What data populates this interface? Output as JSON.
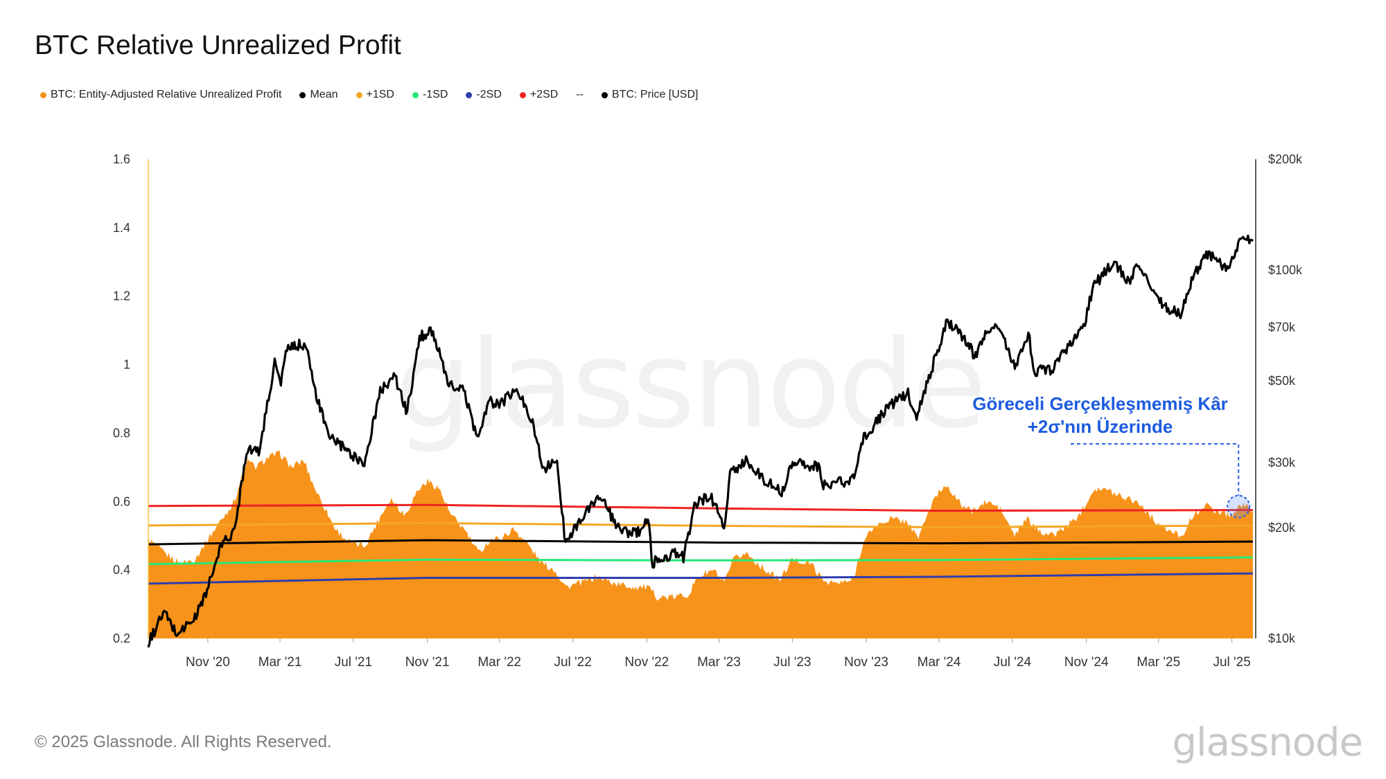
{
  "header": {
    "title": "BTC Relative Unrealized Profit"
  },
  "legend": [
    {
      "label": "BTC: Entity-Adjusted Relative Unrealized Profit",
      "color": "#f7931a"
    },
    {
      "label": "Mean",
      "color": "#000000"
    },
    {
      "label": "+1SD",
      "color": "#f5a623"
    },
    {
      "label": "-1SD",
      "color": "#24e876"
    },
    {
      "label": "-2SD",
      "color": "#2e3dad"
    },
    {
      "label": "+2SD",
      "color": "#ee2222"
    },
    {
      "label": "--",
      "color": ""
    },
    {
      "label": "BTC: Price [USD]",
      "color": "#000000"
    }
  ],
  "annotation": {
    "line1": "Göreceli Gerçekleşmemiş Kâr",
    "line2": "+2σ'nın Üzerinde"
  },
  "footer": {
    "copyright": "© 2025 Glassnode. All Rights Reserved.",
    "brand": "glassnode"
  },
  "watermark": "glassnode",
  "chart_data": {
    "type": "area",
    "x_tick_labels": [
      "Nov '20",
      "Mar '21",
      "Jul '21",
      "Nov '21",
      "Mar '22",
      "Jul '22",
      "Nov '22",
      "Mar '23",
      "Jul '23",
      "Nov '23",
      "Mar '24",
      "Jul '24",
      "Nov '24",
      "Mar '25",
      "Jul '25"
    ],
    "x_tick_dates": [
      "2020-11-01",
      "2021-03-01",
      "2021-07-01",
      "2021-11-01",
      "2022-03-01",
      "2022-07-01",
      "2022-11-01",
      "2023-03-01",
      "2023-07-01",
      "2023-11-01",
      "2024-03-01",
      "2024-07-01",
      "2024-11-01",
      "2025-03-01",
      "2025-07-01"
    ],
    "x_range": [
      "2020-07-25",
      "2025-08-05"
    ],
    "left_axis": {
      "range": [
        0.2,
        1.6
      ],
      "ticks": [
        0.2,
        0.4,
        0.6,
        0.8,
        1,
        1.2,
        1.4,
        1.6
      ],
      "tick_labels": [
        "0.2",
        "0.4",
        "0.6",
        "0.8",
        "1",
        "1.2",
        "1.4",
        "1.6"
      ]
    },
    "right_axis": {
      "scale": "log",
      "range": [
        10000,
        200000
      ],
      "ticks": [
        10000,
        20000,
        30000,
        50000,
        70000,
        100000,
        200000
      ],
      "tick_labels": [
        "$10k",
        "$20k",
        "$30k",
        "$50k",
        "$70k",
        "$100k",
        "$200k"
      ]
    },
    "series": [
      {
        "name": "BTC: Entity-Adjusted Relative Unrealized Profit",
        "type": "area",
        "axis": "left",
        "color": "#f7931a",
        "points": [
          [
            "2020-07-25",
            0.49
          ],
          [
            "2020-08-20",
            0.45
          ],
          [
            "2020-09-15",
            0.42
          ],
          [
            "2020-10-10",
            0.43
          ],
          [
            "2020-11-01",
            0.49
          ],
          [
            "2020-11-25",
            0.55
          ],
          [
            "2020-12-15",
            0.6
          ],
          [
            "2021-01-05",
            0.72
          ],
          [
            "2021-01-20",
            0.7
          ],
          [
            "2021-02-10",
            0.73
          ],
          [
            "2021-03-01",
            0.74
          ],
          [
            "2021-03-20",
            0.7
          ],
          [
            "2021-04-10",
            0.72
          ],
          [
            "2021-04-25",
            0.65
          ],
          [
            "2021-05-15",
            0.58
          ],
          [
            "2021-06-01",
            0.52
          ],
          [
            "2021-06-25",
            0.48
          ],
          [
            "2021-07-20",
            0.47
          ],
          [
            "2021-08-10",
            0.54
          ],
          [
            "2021-09-01",
            0.61
          ],
          [
            "2021-09-25",
            0.56
          ],
          [
            "2021-10-15",
            0.63
          ],
          [
            "2021-11-01",
            0.66
          ],
          [
            "2021-11-20",
            0.64
          ],
          [
            "2021-12-10",
            0.56
          ],
          [
            "2022-01-01",
            0.52
          ],
          [
            "2022-01-25",
            0.45
          ],
          [
            "2022-02-15",
            0.49
          ],
          [
            "2022-03-01",
            0.49
          ],
          [
            "2022-03-25",
            0.52
          ],
          [
            "2022-04-15",
            0.48
          ],
          [
            "2022-05-10",
            0.42
          ],
          [
            "2022-06-01",
            0.4
          ],
          [
            "2022-06-20",
            0.35
          ],
          [
            "2022-07-10",
            0.36
          ],
          [
            "2022-08-10",
            0.38
          ],
          [
            "2022-09-10",
            0.36
          ],
          [
            "2022-10-10",
            0.35
          ],
          [
            "2022-11-01",
            0.35
          ],
          [
            "2022-11-20",
            0.32
          ],
          [
            "2022-12-15",
            0.32
          ],
          [
            "2023-01-10",
            0.33
          ],
          [
            "2023-01-25",
            0.38
          ],
          [
            "2023-02-20",
            0.4
          ],
          [
            "2023-03-10",
            0.36
          ],
          [
            "2023-03-25",
            0.43
          ],
          [
            "2023-04-15",
            0.45
          ],
          [
            "2023-05-10",
            0.41
          ],
          [
            "2023-06-10",
            0.37
          ],
          [
            "2023-07-01",
            0.43
          ],
          [
            "2023-08-01",
            0.42
          ],
          [
            "2023-08-20",
            0.37
          ],
          [
            "2023-09-15",
            0.36
          ],
          [
            "2023-10-10",
            0.37
          ],
          [
            "2023-10-25",
            0.47
          ],
          [
            "2023-11-10",
            0.52
          ],
          [
            "2023-12-10",
            0.55
          ],
          [
            "2024-01-10",
            0.54
          ],
          [
            "2024-01-25",
            0.49
          ],
          [
            "2024-02-15",
            0.58
          ],
          [
            "2024-03-01",
            0.63
          ],
          [
            "2024-03-15",
            0.65
          ],
          [
            "2024-04-01",
            0.6
          ],
          [
            "2024-04-25",
            0.57
          ],
          [
            "2024-05-20",
            0.6
          ],
          [
            "2024-06-10",
            0.58
          ],
          [
            "2024-07-05",
            0.5
          ],
          [
            "2024-07-25",
            0.55
          ],
          [
            "2024-08-10",
            0.52
          ],
          [
            "2024-09-05",
            0.5
          ],
          [
            "2024-10-01",
            0.53
          ],
          [
            "2024-10-20",
            0.56
          ],
          [
            "2024-11-01",
            0.6
          ],
          [
            "2024-11-15",
            0.64
          ],
          [
            "2024-12-10",
            0.63
          ],
          [
            "2025-01-10",
            0.61
          ],
          [
            "2025-01-25",
            0.6
          ],
          [
            "2025-02-20",
            0.55
          ],
          [
            "2025-03-10",
            0.52
          ],
          [
            "2025-04-08",
            0.5
          ],
          [
            "2025-04-25",
            0.55
          ],
          [
            "2025-05-15",
            0.59
          ],
          [
            "2025-06-10",
            0.57
          ],
          [
            "2025-07-01",
            0.56
          ],
          [
            "2025-07-15",
            0.59
          ],
          [
            "2025-08-05",
            0.58
          ]
        ]
      },
      {
        "name": "Mean",
        "type": "line",
        "axis": "left",
        "color": "#000000",
        "points": [
          [
            "2020-07-25",
            0.475
          ],
          [
            "2021-11-01",
            0.487
          ],
          [
            "2023-03-01",
            0.48
          ],
          [
            "2024-03-01",
            0.478
          ],
          [
            "2025-08-05",
            0.483
          ]
        ]
      },
      {
        "name": "+1SD",
        "type": "line",
        "axis": "left",
        "color": "#f5a623",
        "points": [
          [
            "2020-07-25",
            0.53
          ],
          [
            "2021-11-01",
            0.537
          ],
          [
            "2023-03-01",
            0.529
          ],
          [
            "2024-03-01",
            0.525
          ],
          [
            "2025-08-05",
            0.53
          ]
        ]
      },
      {
        "name": "-1SD",
        "type": "line",
        "axis": "left",
        "color": "#24e876",
        "points": [
          [
            "2020-07-25",
            0.417
          ],
          [
            "2021-11-01",
            0.43
          ],
          [
            "2023-03-01",
            0.428
          ],
          [
            "2024-03-01",
            0.429
          ],
          [
            "2025-08-05",
            0.437
          ]
        ]
      },
      {
        "name": "-2SD",
        "type": "line",
        "axis": "left",
        "color": "#2e3dad",
        "points": [
          [
            "2020-07-25",
            0.36
          ],
          [
            "2021-11-01",
            0.377
          ],
          [
            "2023-03-01",
            0.377
          ],
          [
            "2024-03-01",
            0.38
          ],
          [
            "2025-08-05",
            0.39
          ]
        ]
      },
      {
        "name": "+2SD",
        "type": "line",
        "axis": "left",
        "color": "#ee2222",
        "points": [
          [
            "2020-07-25",
            0.587
          ],
          [
            "2021-11-01",
            0.59
          ],
          [
            "2023-03-01",
            0.58
          ],
          [
            "2024-03-01",
            0.573
          ],
          [
            "2025-08-05",
            0.575
          ]
        ]
      },
      {
        "name": "BTC: Price [USD]",
        "type": "line",
        "axis": "right",
        "color": "#000000",
        "points": [
          [
            "2020-07-25",
            9700
          ],
          [
            "2020-08-20",
            11800
          ],
          [
            "2020-09-10",
            10300
          ],
          [
            "2020-10-10",
            11300
          ],
          [
            "2020-11-01",
            13700
          ],
          [
            "2020-11-25",
            18200
          ],
          [
            "2020-12-15",
            19400
          ],
          [
            "2021-01-05",
            33000
          ],
          [
            "2021-01-25",
            32000
          ],
          [
            "2021-02-21",
            57000
          ],
          [
            "2021-03-01",
            49000
          ],
          [
            "2021-03-13",
            61000
          ],
          [
            "2021-04-14",
            63500
          ],
          [
            "2021-04-25",
            49000
          ],
          [
            "2021-05-19",
            36000
          ],
          [
            "2021-06-22",
            32000
          ],
          [
            "2021-07-20",
            30000
          ],
          [
            "2021-08-15",
            47000
          ],
          [
            "2021-09-07",
            52000
          ],
          [
            "2021-09-28",
            41000
          ],
          [
            "2021-10-20",
            66000
          ],
          [
            "2021-11-10",
            68500
          ],
          [
            "2021-12-05",
            49000
          ],
          [
            "2022-01-01",
            47000
          ],
          [
            "2022-01-24",
            34500
          ],
          [
            "2022-02-10",
            44000
          ],
          [
            "2022-03-01",
            43000
          ],
          [
            "2022-03-29",
            47500
          ],
          [
            "2022-04-25",
            39000
          ],
          [
            "2022-05-12",
            29000
          ],
          [
            "2022-06-05",
            30000
          ],
          [
            "2022-06-18",
            18500
          ],
          [
            "2022-07-10",
            20500
          ],
          [
            "2022-08-14",
            24500
          ],
          [
            "2022-09-15",
            19800
          ],
          [
            "2022-10-15",
            19200
          ],
          [
            "2022-11-05",
            21000
          ],
          [
            "2022-11-09",
            16000
          ],
          [
            "2022-12-15",
            17000
          ],
          [
            "2023-01-01",
            16600
          ],
          [
            "2023-01-20",
            23000
          ],
          [
            "2023-02-15",
            24500
          ],
          [
            "2023-03-10",
            20000
          ],
          [
            "2023-03-20",
            28000
          ],
          [
            "2023-04-14",
            30500
          ],
          [
            "2023-05-15",
            27000
          ],
          [
            "2023-06-15",
            25000
          ],
          [
            "2023-07-01",
            30500
          ],
          [
            "2023-08-15",
            29000
          ],
          [
            "2023-08-20",
            26000
          ],
          [
            "2023-10-10",
            27000
          ],
          [
            "2023-10-25",
            34500
          ],
          [
            "2023-12-05",
            42000
          ],
          [
            "2024-01-10",
            46500
          ],
          [
            "2024-01-23",
            39500
          ],
          [
            "2024-02-15",
            52000
          ],
          [
            "2024-03-14",
            73000
          ],
          [
            "2024-04-05",
            68000
          ],
          [
            "2024-05-01",
            58000
          ],
          [
            "2024-05-20",
            70000
          ],
          [
            "2024-06-10",
            69000
          ],
          [
            "2024-07-05",
            55000
          ],
          [
            "2024-07-28",
            68000
          ],
          [
            "2024-08-05",
            53000
          ],
          [
            "2024-09-06",
            54000
          ],
          [
            "2024-10-01",
            62000
          ],
          [
            "2024-10-29",
            72000
          ],
          [
            "2024-11-12",
            90000
          ],
          [
            "2024-12-17",
            106000
          ],
          [
            "2025-01-13",
            91000
          ],
          [
            "2025-01-21",
            105000
          ],
          [
            "2025-02-25",
            86000
          ],
          [
            "2025-03-10",
            80000
          ],
          [
            "2025-04-08",
            76000
          ],
          [
            "2025-04-25",
            94000
          ],
          [
            "2025-05-22",
            111000
          ],
          [
            "2025-06-22",
            100000
          ],
          [
            "2025-07-01",
            107000
          ],
          [
            "2025-07-14",
            122000
          ],
          [
            "2025-08-05",
            120000
          ]
        ]
      }
    ],
    "grid": false,
    "legend_position": "top-left"
  }
}
